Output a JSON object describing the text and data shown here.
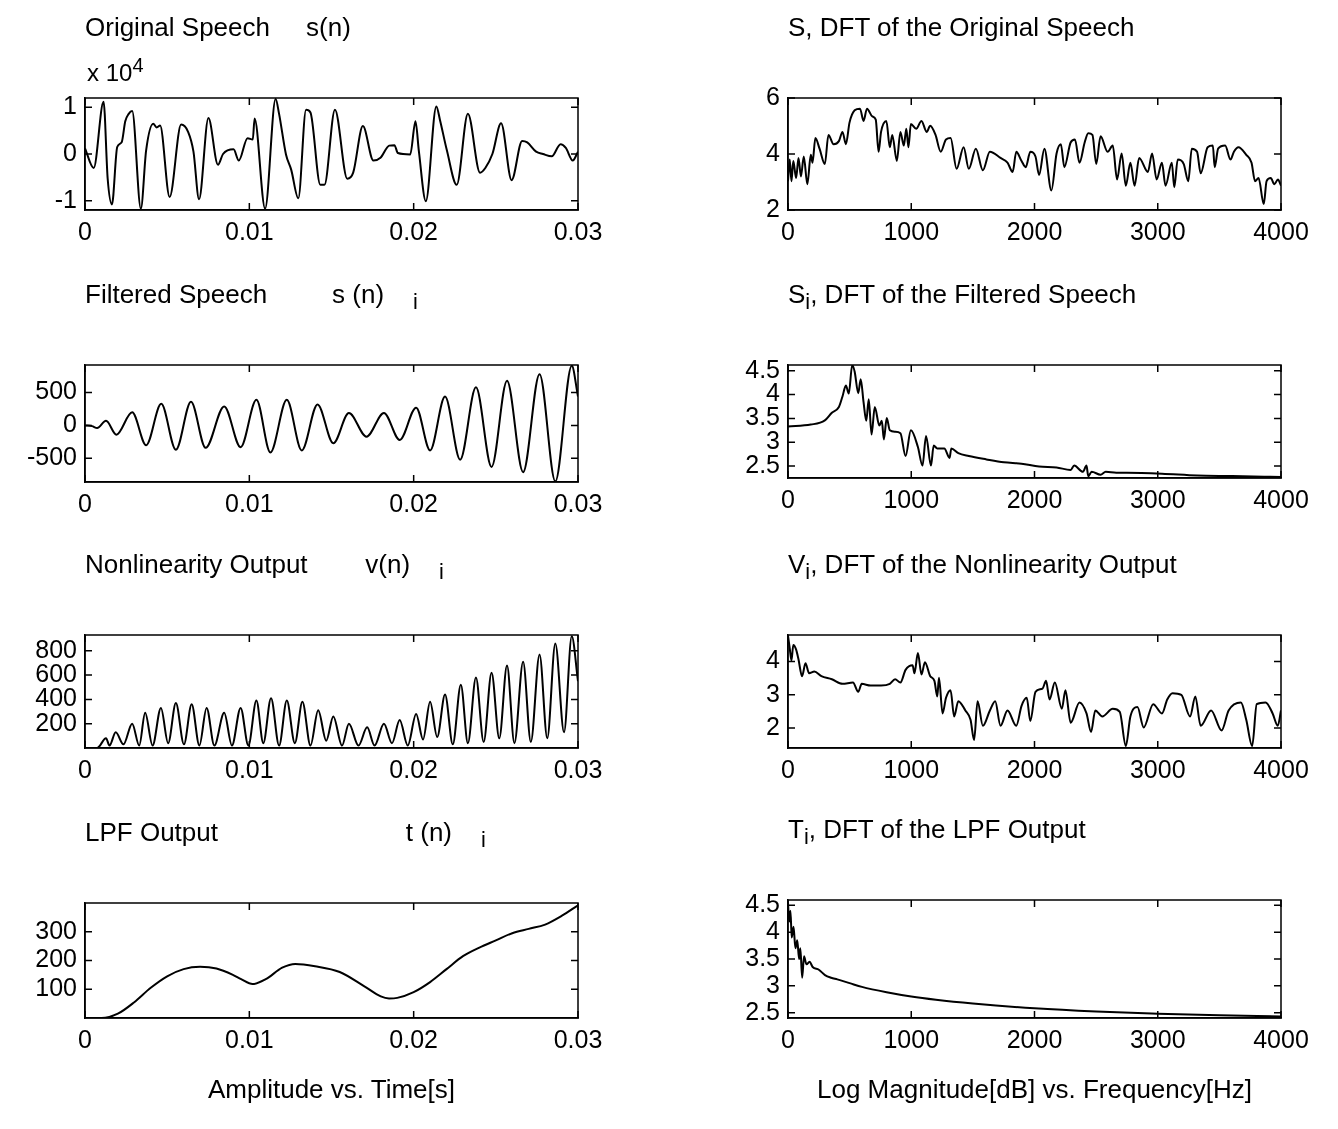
{
  "chart_data": [
    {
      "type": "line",
      "title": "Original Speech     s(n)",
      "annotations": [
        "x 10$^{4}$"
      ],
      "xlim": [
        0,
        0.03
      ],
      "xticks": [
        0,
        0.01,
        0.02,
        0.03
      ],
      "ylim": [
        -1.2,
        1.2
      ],
      "yticks": [
        -1,
        0,
        1
      ],
      "grid": false,
      "color": "#000000",
      "x": [
        0,
        0.00053,
        0.00113,
        0.00138,
        0.00164,
        0.00196,
        0.00223,
        0.00245,
        0.00266,
        0.00287,
        0.0034,
        0.00372,
        0.00415,
        0.00436,
        0.00457,
        0.00515,
        0.00585,
        0.00628,
        0.0066,
        0.00694,
        0.00751,
        0.00809,
        0.0084,
        0.00904,
        0.00936,
        0.00989,
        0.01021,
        0.01032,
        0.01096,
        0.0116,
        0.01181,
        0.01223,
        0.01255,
        0.01298,
        0.01345,
        0.01372,
        0.01432,
        0.01457,
        0.01521,
        0.01596,
        0.01632,
        0.01691,
        0.01755,
        0.01798,
        0.01851,
        0.01883,
        0.01904,
        0.01979,
        0.02011,
        0.02032,
        0.02074,
        0.02138,
        0.0216,
        0.02202,
        0.02262,
        0.0233,
        0.02404,
        0.02436,
        0.02479,
        0.02532,
        0.02596,
        0.0266,
        0.02691,
        0.02745,
        0.02787,
        0.0284,
        0.02894,
        0.02926,
        0.02968,
        0.03
      ],
      "values": [
        0.12,
        -0.3,
        1.12,
        -0.53,
        -1.08,
        0.15,
        0.25,
        0.7,
        0.86,
        0.92,
        -1.17,
        0.08,
        0.65,
        0.57,
        0.61,
        -0.92,
        0.63,
        0.47,
        0.05,
        -0.97,
        0.77,
        -0.23,
        0,
        0.1,
        -0.14,
        0.34,
        0.31,
        0.76,
        -1.17,
        1.18,
        0.86,
        -0.01,
        -0.34,
        -0.95,
        0.95,
        0.89,
        -0.66,
        -0.66,
        0.95,
        -0.53,
        -0.4,
        0.6,
        -0.14,
        -0.08,
        0.18,
        0.19,
        0.02,
        -0.01,
        0.7,
        0.05,
        -1.01,
        1.02,
        0.73,
        0.08,
        -0.66,
        0.86,
        -0.4,
        -0.3,
        0,
        0.66,
        -0.56,
        0.28,
        0.25,
        0.05,
        0,
        -0.05,
        0.21,
        0.13,
        -0.14,
        0.05
      ]
    },
    {
      "type": "line",
      "title": "Filtered Speech         s (n)    $_{i}$",
      "xlim": [
        0,
        0.03
      ],
      "xticks": [
        0,
        0.01,
        0.02,
        0.03
      ],
      "ylim": [
        -860,
        920
      ],
      "yticks": [
        -500,
        0,
        500
      ],
      "grid": false,
      "color": "#000000",
      "x": [
        0,
        0.00043,
        0.00074,
        0.00128,
        0.00191,
        0.00287,
        0.00372,
        0.00464,
        0.00553,
        0.00645,
        0.00734,
        0.00847,
        0.00947,
        0.01043,
        0.01128,
        0.01228,
        0.01319,
        0.01415,
        0.01511,
        0.01606,
        0.01713,
        0.01819,
        0.01915,
        0.02015,
        0.021,
        0.02191,
        0.02283,
        0.02379,
        0.02474,
        0.02568,
        0.02666,
        0.02766,
        0.02862,
        0.02962,
        0.03
      ],
      "values": [
        0,
        -10,
        -40,
        70,
        -140,
        200,
        -300,
        330,
        -370,
        360,
        -340,
        290,
        -330,
        390,
        -410,
        390,
        -380,
        320,
        -270,
        190,
        -170,
        190,
        -220,
        270,
        -380,
        440,
        -520,
        580,
        -630,
        680,
        -710,
        780,
        -850,
        910,
        440
      ]
    },
    {
      "type": "line",
      "title": "Nonlinearity Output        v(n)    $_{i}$",
      "xlim": [
        0,
        0.03
      ],
      "xticks": [
        0,
        0.01,
        0.02,
        0.03
      ],
      "ylim": [
        0,
        930
      ],
      "yticks": [
        200,
        400,
        600,
        800
      ],
      "grid": false,
      "color": "#000000",
      "x": [
        0,
        0.00074,
        0.00128,
        0.00149,
        0.00187,
        0.00234,
        0.00287,
        0.0033,
        0.00366,
        0.00411,
        0.00462,
        0.00506,
        0.00553,
        0.00602,
        0.00649,
        0.00696,
        0.0074,
        0.00787,
        0.00847,
        0.00894,
        0.00947,
        0.00994,
        0.01043,
        0.01085,
        0.01132,
        0.01181,
        0.01228,
        0.01277,
        0.01323,
        0.01372,
        0.01419,
        0.01468,
        0.01511,
        0.01564,
        0.01606,
        0.01664,
        0.01717,
        0.01762,
        0.01819,
        0.01868,
        0.01915,
        0.01964,
        0.02015,
        0.02057,
        0.021,
        0.02143,
        0.02191,
        0.02238,
        0.02287,
        0.0233,
        0.02379,
        0.02426,
        0.02474,
        0.02521,
        0.02568,
        0.02613,
        0.02666,
        0.02713,
        0.02766,
        0.02813,
        0.02862,
        0.02915,
        0.02962,
        0.03
      ],
      "values": [
        0,
        0,
        80,
        20,
        130,
        30,
        200,
        20,
        290,
        20,
        330,
        40,
        370,
        30,
        360,
        20,
        330,
        20,
        290,
        20,
        330,
        20,
        390,
        40,
        410,
        20,
        390,
        40,
        380,
        20,
        310,
        60,
        260,
        20,
        200,
        20,
        170,
        20,
        200,
        40,
        230,
        20,
        280,
        70,
        380,
        90,
        440,
        30,
        520,
        40,
        580,
        50,
        620,
        80,
        680,
        40,
        710,
        50,
        770,
        80,
        860,
        130,
        920,
        550
      ]
    },
    {
      "type": "line",
      "title": "LPF Output                          t (n)    $_{i}$",
      "xlabel": "Amplitude vs. Time[s]",
      "xlim": [
        0,
        0.03
      ],
      "xticks": [
        0,
        0.01,
        0.02,
        0.03
      ],
      "ylim": [
        0,
        400
      ],
      "yticks": [
        100,
        200,
        300
      ],
      "grid": false,
      "color": "#000000",
      "x": [
        0,
        0.001,
        0.002,
        0.003,
        0.004,
        0.005,
        0.006,
        0.007,
        0.008,
        0.009,
        0.0095,
        0.0102,
        0.011,
        0.012,
        0.0128,
        0.014,
        0.0155,
        0.017,
        0.018,
        0.0185,
        0.019,
        0.02,
        0.021,
        0.022,
        0.023,
        0.024,
        0.025,
        0.026,
        0.027,
        0.028,
        0.029,
        0.03
      ],
      "values": [
        0,
        0,
        15,
        55,
        105,
        145,
        170,
        178,
        172,
        150,
        135,
        118,
        135,
        175,
        188,
        180,
        160,
        110,
        75,
        68,
        70,
        90,
        125,
        170,
        215,
        245,
        270,
        295,
        310,
        325,
        355,
        392
      ]
    },
    {
      "type": "line",
      "title": "S, DFT of the Original Speech",
      "xlim": [
        0,
        4000
      ],
      "xticks": [
        0,
        1000,
        2000,
        3000,
        4000
      ],
      "ylim": [
        2,
        6
      ],
      "yticks": [
        2,
        4,
        6
      ],
      "grid": false,
      "color": "#000000",
      "x": [
        0,
        14,
        28,
        43,
        66,
        85,
        105,
        128,
        157,
        185,
        199,
        222,
        256,
        299,
        328,
        370,
        413,
        442,
        470,
        499,
        541,
        584,
        613,
        641,
        684,
        712,
        735,
        755,
        798,
        826,
        846,
        883,
        912,
        940,
        960,
        977,
        997,
        1040,
        1083,
        1125,
        1154,
        1197,
        1239,
        1282,
        1319,
        1368,
        1425,
        1467,
        1524,
        1581,
        1638,
        1724,
        1781,
        1823,
        1852,
        1895,
        1929,
        1966,
        2008,
        2037,
        2080,
        2137,
        2179,
        2214,
        2242,
        2293,
        2328,
        2365,
        2407,
        2436,
        2470,
        2501,
        2536,
        2593,
        2635,
        2670,
        2707,
        2741,
        2778,
        2812,
        2849,
        2920,
        2954,
        2991,
        3034,
        3063,
        3114,
        3134,
        3162,
        3211,
        3248,
        3276,
        3319,
        3348,
        3405,
        3447,
        3462,
        3490,
        3547,
        3590,
        3618,
        3655,
        3718,
        3761,
        3789,
        3818,
        3860,
        3883,
        3917,
        3946,
        3975,
        4000
      ],
      "values": [
        3.03,
        3.8,
        3.03,
        3.75,
        3.14,
        3.86,
        3.2,
        3.91,
        2.92,
        3.97,
        3.69,
        4.57,
        4.19,
        3.64,
        4.68,
        4.35,
        4.46,
        4.79,
        4.35,
        5.12,
        5.56,
        5.62,
        5.18,
        5.62,
        5.34,
        5.23,
        4.08,
        4.79,
        5.18,
        4.24,
        4.68,
        3.75,
        4.79,
        4.3,
        4.9,
        4.24,
        5.07,
        4.9,
        5.18,
        4.79,
        5.01,
        4.68,
        4.08,
        4.52,
        4.57,
        3.47,
        4.24,
        3.47,
        4.19,
        3.42,
        4.08,
        3.86,
        3.69,
        3.36,
        4.08,
        3.75,
        3.53,
        4.08,
        3.91,
        3.25,
        4.19,
        2.7,
        4.02,
        4.35,
        3.53,
        4.41,
        4.52,
        3.69,
        4.41,
        4.74,
        4.68,
        3.64,
        4.63,
        4.08,
        4.3,
        3.09,
        4.02,
        2.87,
        3.69,
        2.87,
        3.86,
        3.36,
        4.02,
        3.09,
        3.69,
        2.87,
        3.69,
        2.81,
        3.8,
        3.64,
        3.03,
        4.19,
        4.08,
        3.31,
        4.24,
        4.3,
        3.53,
        4.19,
        4.3,
        3.8,
        4.08,
        4.24,
        3.97,
        3.69,
        3.03,
        3.14,
        2.21,
        3.03,
        3.14,
        2.92,
        3.09,
        2.87
      ]
    },
    {
      "type": "line",
      "title": "S$_{i}$, DFT of the Filtered Speech",
      "xlim": [
        0,
        4000
      ],
      "xticks": [
        0,
        1000,
        2000,
        3000,
        4000
      ],
      "ylim": [
        2.25,
        4.62
      ],
      "yticks": [
        2.5,
        3,
        3.5,
        4,
        4.5
      ],
      "grid": false,
      "color": "#000000",
      "x": [
        0,
        185,
        299,
        356,
        413,
        442,
        470,
        493,
        521,
        541,
        570,
        590,
        613,
        635,
        655,
        678,
        704,
        741,
        761,
        778,
        801,
        826,
        869,
        912,
        954,
        997,
        1054,
        1091,
        1120,
        1160,
        1182,
        1211,
        1268,
        1311,
        1325,
        1382,
        1467,
        1610,
        1752,
        1894,
        2037,
        2179,
        2293,
        2322,
        2393,
        2422,
        2436,
        2464,
        2536,
        2578,
        2664,
        2749,
        3034,
        3319,
        3604,
        4000
      ],
      "values": [
        3.33,
        3.37,
        3.46,
        3.62,
        3.74,
        3.96,
        4.19,
        4.02,
        4.62,
        4.48,
        4.03,
        4.32,
        3.84,
        3.45,
        3.9,
        3.16,
        3.74,
        3.35,
        3.45,
        3.06,
        3.51,
        3.25,
        3.22,
        3.19,
        2.71,
        3.25,
        2.9,
        2.51,
        3.13,
        2.51,
        2.93,
        2.87,
        2.87,
        2.67,
        2.87,
        2.77,
        2.71,
        2.64,
        2.58,
        2.55,
        2.49,
        2.47,
        2.42,
        2.51,
        2.38,
        2.51,
        2.29,
        2.38,
        2.32,
        2.38,
        2.36,
        2.36,
        2.34,
        2.3,
        2.29,
        2.27
      ]
    },
    {
      "type": "line",
      "title": "V$_{i}$, DFT of the Nonlinearity Output",
      "xlim": [
        0,
        4000
      ],
      "xticks": [
        0,
        1000,
        2000,
        3000,
        4000
      ],
      "ylim": [
        1.4,
        4.8
      ],
      "yticks": [
        2,
        3,
        4
      ],
      "grid": false,
      "color": "#000000",
      "x": [
        0,
        14,
        28,
        43,
        66,
        85,
        114,
        142,
        171,
        214,
        271,
        356,
        442,
        527,
        570,
        598,
        670,
        755,
        826,
        869,
        912,
        954,
        1011,
        1026,
        1054,
        1083,
        1111,
        1154,
        1188,
        1211,
        1225,
        1254,
        1282,
        1319,
        1348,
        1382,
        1439,
        1481,
        1510,
        1538,
        1581,
        1638,
        1681,
        1724,
        1781,
        1852,
        1895,
        1937,
        1966,
        2008,
        2065,
        2094,
        2122,
        2165,
        2222,
        2251,
        2293,
        2365,
        2422,
        2459,
        2493,
        2550,
        2635,
        2692,
        2741,
        2778,
        2835,
        2886,
        2963,
        3034,
        3077,
        3120,
        3191,
        3262,
        3305,
        3348,
        3433,
        3518,
        3575,
        3675,
        3718,
        3766,
        3803,
        3875,
        3932,
        3974,
        4000
      ],
      "values": [
        4.78,
        4.4,
        4.03,
        4.5,
        4.36,
        4.07,
        3.56,
        3.95,
        3.65,
        3.7,
        3.56,
        3.47,
        3.33,
        3.37,
        3.09,
        3.33,
        3.28,
        3.28,
        3.33,
        3.47,
        3.37,
        3.75,
        3.89,
        3.65,
        4.26,
        3.61,
        3.98,
        3.56,
        3.42,
        2.95,
        3.51,
        2.44,
        2.91,
        3.14,
        2.35,
        2.81,
        2.53,
        2.25,
        1.64,
        2.81,
        2.07,
        2.53,
        2.81,
        2.07,
        2.53,
        2.07,
        2.67,
        2.91,
        2.21,
        3.09,
        3.19,
        3.42,
        2.86,
        3.37,
        2.58,
        3.14,
        2.16,
        2.77,
        2.44,
        1.88,
        2.53,
        2.35,
        2.58,
        2.49,
        1.46,
        2.35,
        2.63,
        2.02,
        2.72,
        2.44,
        2.86,
        3.05,
        3,
        2.35,
        2.95,
        2.07,
        2.53,
        1.93,
        2.53,
        2.77,
        2.25,
        1.46,
        2.72,
        2.77,
        2.44,
        2.07,
        2.53
      ]
    },
    {
      "type": "line",
      "title": "T$_{i}$, DFT of the LPF Output",
      "xlabel": "Log Magnitude[dB] vs. Frequency[Hz]",
      "xlim": [
        0,
        4000
      ],
      "xticks": [
        0,
        1000,
        2000,
        3000,
        4000
      ],
      "ylim": [
        2.4,
        4.6
      ],
      "yticks": [
        2.5,
        3,
        3.5,
        4,
        4.5
      ],
      "grid": false,
      "color": "#000000",
      "x": [
        0,
        10,
        20,
        30,
        45,
        60,
        75,
        90,
        100,
        115,
        130,
        150,
        175,
        200,
        250,
        300,
        350,
        400,
        500,
        600,
        800,
        1000,
        1200,
        1500,
        2000,
        2500,
        3000,
        3500,
        4000
      ],
      "values": [
        4.55,
        4.2,
        4.4,
        3.9,
        4.1,
        3.7,
        3.85,
        3.5,
        3.7,
        3.15,
        3.55,
        3.4,
        3.45,
        3.35,
        3.3,
        3.2,
        3.15,
        3.12,
        3.05,
        2.98,
        2.88,
        2.8,
        2.74,
        2.67,
        2.58,
        2.52,
        2.48,
        2.45,
        2.43
      ]
    }
  ]
}
